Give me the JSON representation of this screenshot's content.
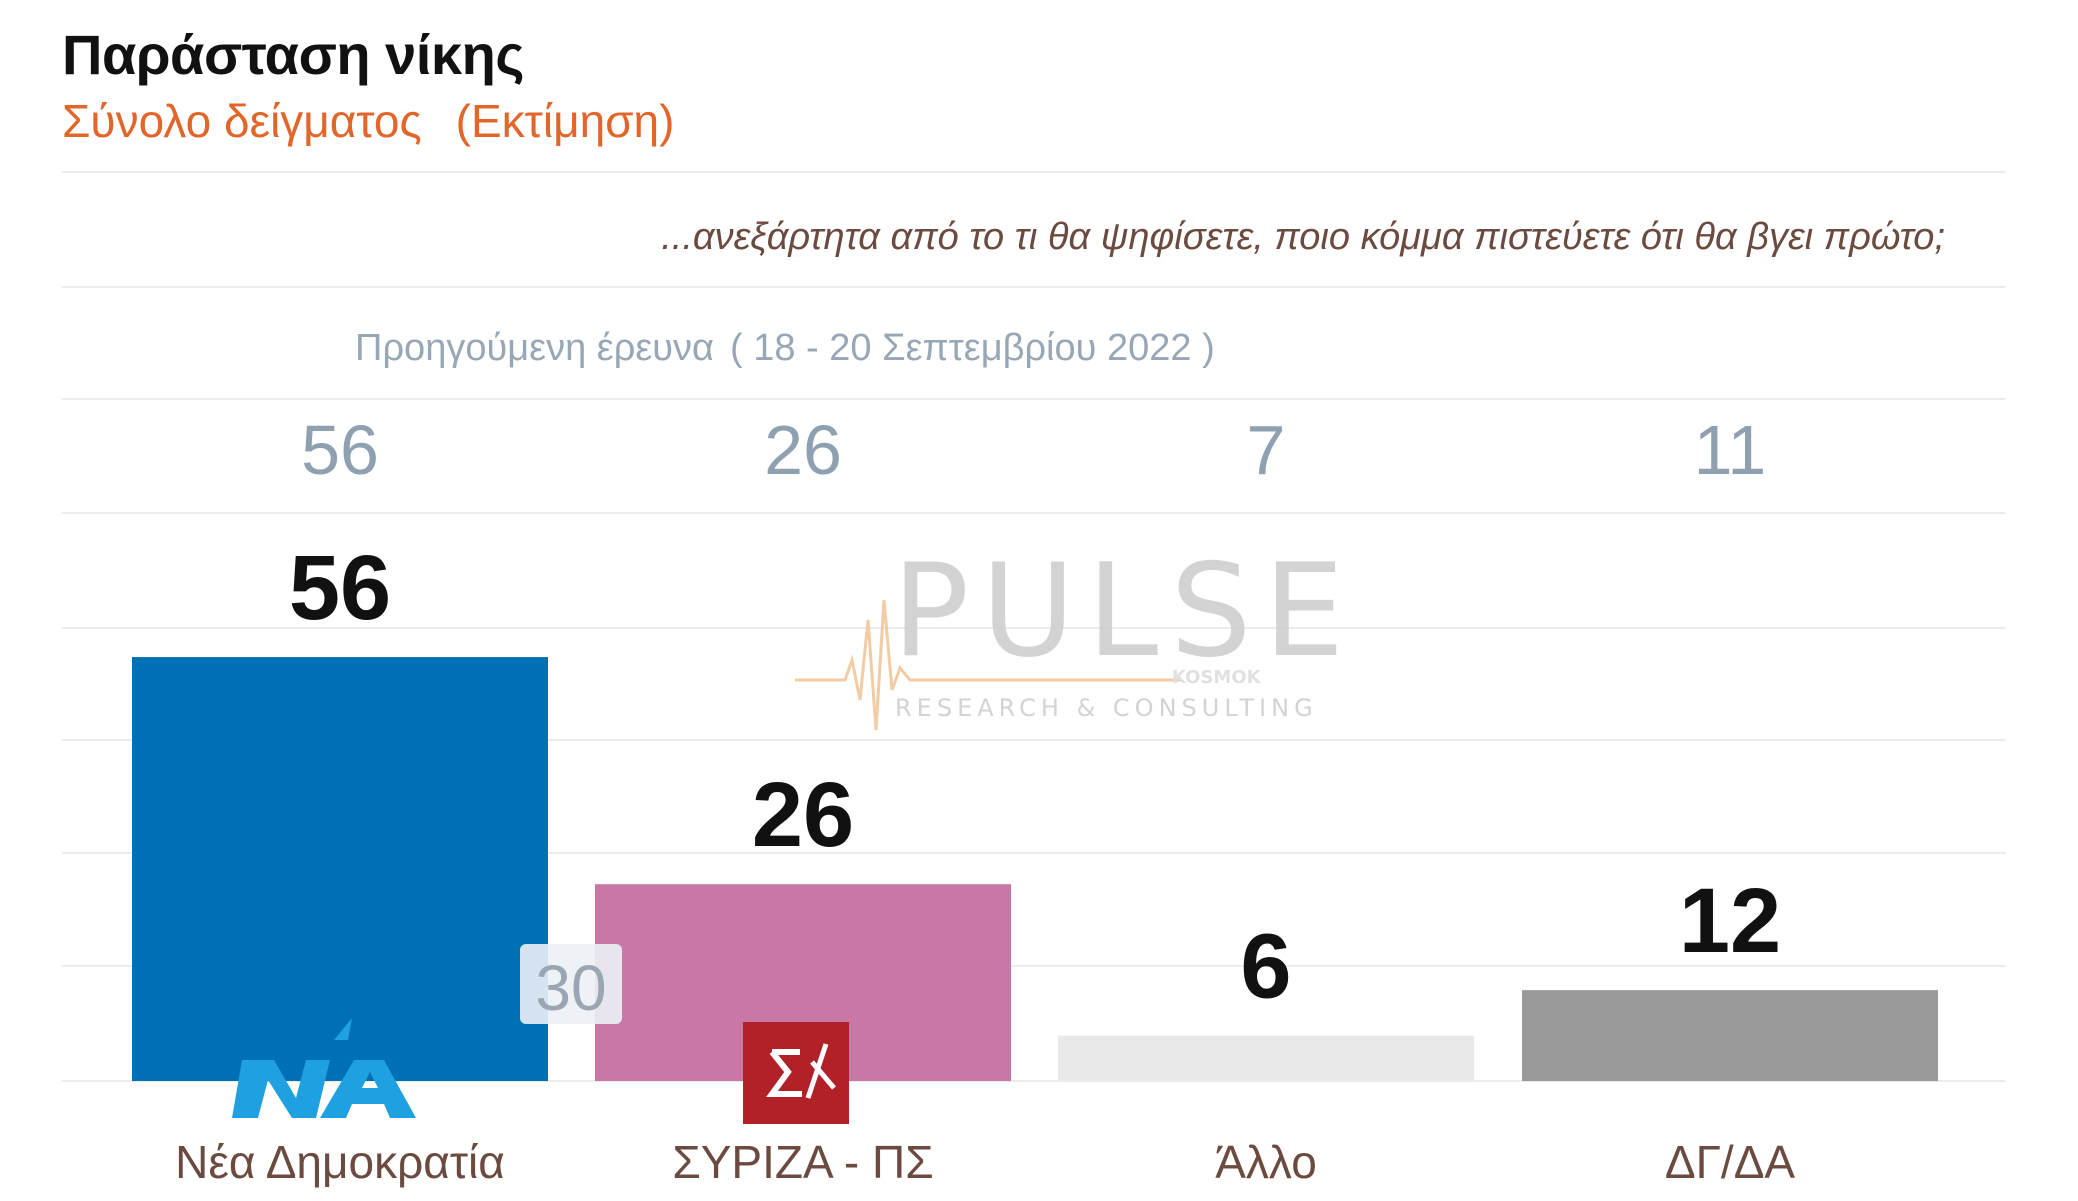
{
  "header": {
    "title": "Παράσταση νίκης",
    "subtitle_main": "Σύνολο δείγματος",
    "subtitle_est": "(Εκτίμηση)"
  },
  "question": "...ανεξάρτητα από το τι θα ψηφίσετε, ποιο κόμμα πιστεύετε ότι θα βγει πρώτο;",
  "previous_survey": {
    "label": "Προηγούμενη έρευνα",
    "dates": "( 18 - 20 Σεπτεμβρίου  2022 )",
    "values": [
      "56",
      "26",
      "7",
      "11"
    ]
  },
  "watermark": {
    "brand": "PULSE",
    "tagline": "RESEARCH & CONSULTING",
    "small": "KOSMOK"
  },
  "logos": {
    "nd": "ΝΔ",
    "syriza": "Σ"
  },
  "colors": {
    "nd": "#0070b4",
    "syriza": "#c978a6",
    "other": "#e9e9e9",
    "dk": "#9a9a9a",
    "title": "#111111",
    "subtitle": "#e2662a",
    "previous": "#8fa1b1",
    "category_label": "#6b4a3f",
    "watermark": "#c8c8c8"
  },
  "chart_data": {
    "type": "bar",
    "categories": [
      "Νέα Δημοκρατία",
      "ΣΥΡΙΖΑ - ΠΣ",
      "Άλλο",
      "ΔΓ/ΔΑ"
    ],
    "values": [
      56,
      26,
      6,
      12
    ],
    "previous_values": [
      56,
      26,
      7,
      11
    ],
    "colors": [
      "#0070b4",
      "#c978a6",
      "#e9e9e9",
      "#9a9a9a"
    ],
    "annotations": [
      {
        "category": "Νέα Δημοκρατία",
        "text": "30"
      }
    ],
    "ylim": [
      0,
      60
    ],
    "grid": true
  }
}
